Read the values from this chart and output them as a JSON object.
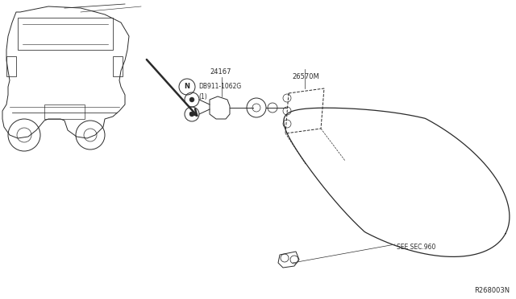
{
  "bg_color": "#ffffff",
  "line_color": "#2a2a2a",
  "text_color": "#2a2a2a",
  "fig_width": 6.4,
  "fig_height": 3.72,
  "dpi": 100,
  "ref_number": "R268003N",
  "label_24167": "24167",
  "label_26570M": "26570M",
  "label_db": "DB911-1062G",
  "label_qty": "(1)",
  "label_see": "SEE SEC.960"
}
